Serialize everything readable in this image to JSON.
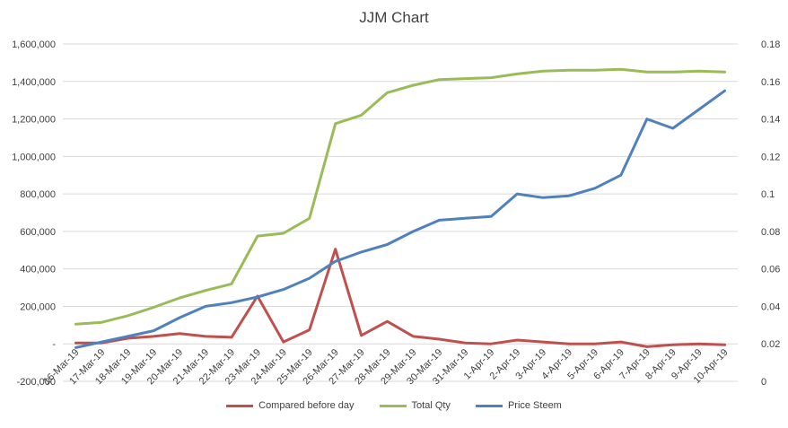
{
  "chart_data": {
    "type": "line",
    "title": "JJM Chart",
    "categories": [
      "16-Mar-19",
      "17-Mar-19",
      "18-Mar-19",
      "19-Mar-19",
      "20-Mar-19",
      "21-Mar-19",
      "22-Mar-19",
      "23-Mar-19",
      "24-Mar-19",
      "25-Mar-19",
      "26-Mar-19",
      "27-Mar-19",
      "28-Mar-19",
      "29-Mar-19",
      "30-Mar-19",
      "31-Mar-19",
      "1-Apr-19",
      "2-Apr-19",
      "3-Apr-19",
      "4-Apr-19",
      "5-Apr-19",
      "6-Apr-19",
      "7-Apr-19",
      "8-Apr-19",
      "9-Apr-19",
      "10-Apr-19"
    ],
    "left_axis": {
      "ylim": [
        -200000,
        1600000
      ],
      "ticks": [
        "-200,000",
        "-",
        "200,000",
        "400,000",
        "600,000",
        "800,000",
        "1,000,000",
        "1,200,000",
        "1,400,000",
        "1,600,000"
      ],
      "tick_values": [
        -200000,
        0,
        200000,
        400000,
        600000,
        800000,
        1000000,
        1200000,
        1400000,
        1600000
      ]
    },
    "right_axis": {
      "ylim": [
        0,
        0.18
      ],
      "ticks": [
        "0",
        "0.02",
        "0.04",
        "0.06",
        "0.08",
        "0.1",
        "0.12",
        "0.14",
        "0.16",
        "0.18"
      ],
      "tick_values": [
        0,
        0.02,
        0.04,
        0.06,
        0.08,
        0.1,
        0.12,
        0.14,
        0.16,
        0.18
      ]
    },
    "grid": true,
    "legend_position": "bottom",
    "series": [
      {
        "name": "Compared before day",
        "axis": "left",
        "color": "#C0504D",
        "values": [
          5000,
          5000,
          30000,
          40000,
          55000,
          40000,
          35000,
          255000,
          10000,
          75000,
          505000,
          45000,
          120000,
          40000,
          25000,
          5000,
          0,
          20000,
          10000,
          0,
          0,
          10000,
          -15000,
          -5000,
          0,
          -5000
        ]
      },
      {
        "name": "Total Qty",
        "axis": "left",
        "color": "#9BBB59",
        "values": [
          105000,
          115000,
          150000,
          195000,
          245000,
          285000,
          320000,
          575000,
          590000,
          670000,
          1175000,
          1220000,
          1340000,
          1380000,
          1410000,
          1415000,
          1420000,
          1440000,
          1455000,
          1460000,
          1460000,
          1465000,
          1450000,
          1450000,
          1455000,
          1450000
        ]
      },
      {
        "name": "Price Steem",
        "axis": "right",
        "color": "#4F81BD",
        "values": [
          0.018,
          0.021,
          0.024,
          0.027,
          0.034,
          0.04,
          0.042,
          0.045,
          0.049,
          0.055,
          0.064,
          0.069,
          0.073,
          0.08,
          0.086,
          0.087,
          0.088,
          0.1,
          0.098,
          0.099,
          0.103,
          0.11,
          0.14,
          0.135,
          0.145,
          0.155
        ]
      }
    ]
  }
}
